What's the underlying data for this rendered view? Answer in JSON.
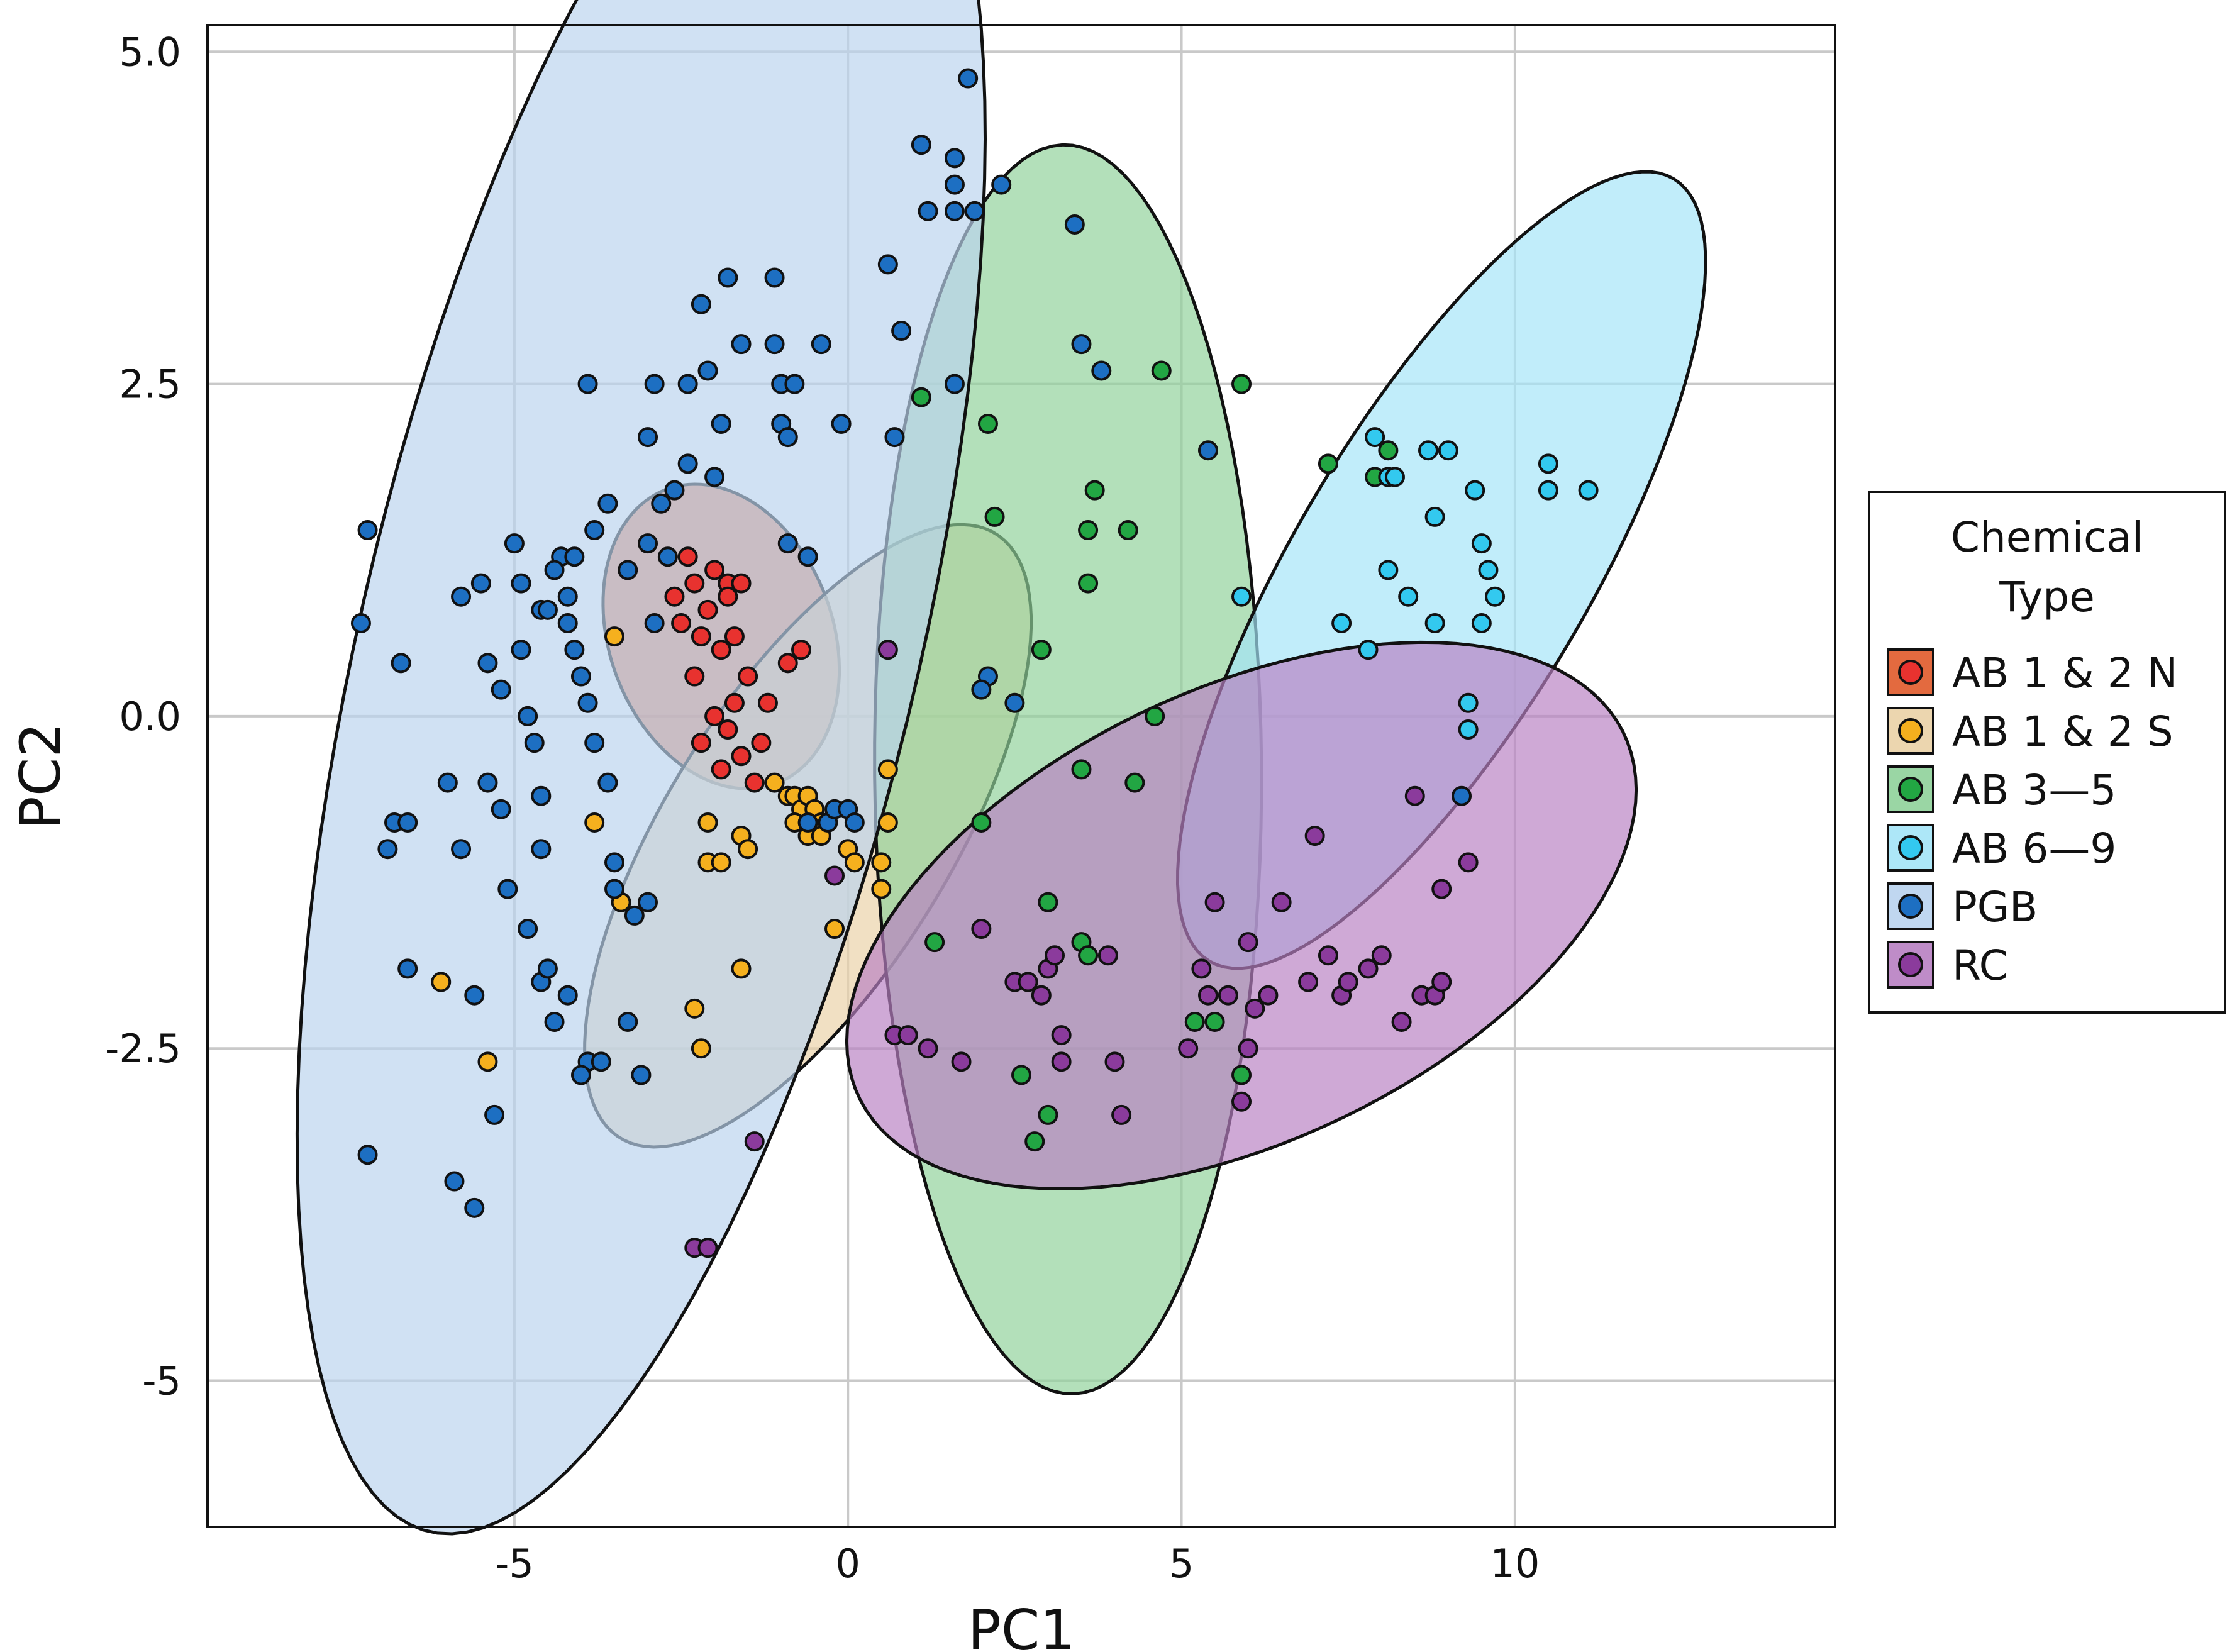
{
  "chart_data": {
    "type": "scatter",
    "xlabel": "PC1",
    "ylabel": "PC2",
    "xlim": [
      -9.6,
      14.8
    ],
    "ylim": [
      -6.1,
      5.2
    ],
    "xticks": [
      -5,
      0,
      5,
      10
    ],
    "xtick_labels": [
      "-5",
      "0",
      "5",
      "10"
    ],
    "yticks": [
      -5,
      -2.5,
      0,
      2.5,
      5
    ],
    "ytick_labels": [
      "-5",
      "-2.5",
      "0.0",
      "2.5",
      "5.0"
    ],
    "grid": true,
    "legend": {
      "title_lines": [
        "Chemical",
        "Type"
      ],
      "position": "right"
    },
    "series": [
      {
        "name": "AB 1 & 2 N",
        "color": "#e8322f",
        "fill": "#e05a2a",
        "ellipse": {
          "cx": -1.9,
          "cy": 0.6,
          "rx": 1.1,
          "ry": 1.8,
          "angle_deg": 77
        },
        "points": [
          [
            -2.6,
            0.9
          ],
          [
            -2.5,
            0.7
          ],
          [
            -2.3,
            1.0
          ],
          [
            -2.1,
            0.8
          ],
          [
            -2.0,
            1.1
          ],
          [
            -1.8,
            1.0
          ],
          [
            -1.7,
            0.6
          ],
          [
            -1.6,
            1.0
          ],
          [
            -2.4,
            1.2
          ],
          [
            -2.2,
            0.6
          ],
          [
            -1.9,
            0.5
          ],
          [
            -1.5,
            0.3
          ],
          [
            -1.7,
            0.1
          ],
          [
            -1.8,
            -0.1
          ],
          [
            -2.0,
            0.0
          ],
          [
            -2.2,
            -0.2
          ],
          [
            -1.6,
            -0.3
          ],
          [
            -1.3,
            -0.2
          ],
          [
            -1.2,
            0.1
          ],
          [
            -0.9,
            0.4
          ],
          [
            -0.7,
            0.5
          ],
          [
            -1.9,
            -0.4
          ],
          [
            -1.4,
            -0.5
          ],
          [
            -2.3,
            0.3
          ],
          [
            -1.8,
            0.9
          ]
        ]
      },
      {
        "name": "AB 1 & 2 S",
        "color": "#f5b01e",
        "fill": "#ead2a6",
        "ellipse": {
          "cx": -0.6,
          "cy": -0.9,
          "rx": 3.8,
          "ry": 1.5,
          "angle_deg": 31
        },
        "points": [
          [
            -3.5,
            0.6
          ],
          [
            -3.8,
            -0.8
          ],
          [
            -3.4,
            -1.4
          ],
          [
            -2.1,
            -0.8
          ],
          [
            -2.1,
            -1.1
          ],
          [
            -1.9,
            -1.1
          ],
          [
            -1.6,
            -0.9
          ],
          [
            -1.5,
            -1.0
          ],
          [
            -1.1,
            -0.5
          ],
          [
            -0.9,
            -0.6
          ],
          [
            -0.8,
            -0.6
          ],
          [
            -0.7,
            -0.7
          ],
          [
            -0.6,
            -0.6
          ],
          [
            -0.5,
            -0.7
          ],
          [
            -0.8,
            -0.8
          ],
          [
            -0.6,
            -0.9
          ],
          [
            -0.4,
            -0.8
          ],
          [
            0.0,
            -1.0
          ],
          [
            0.1,
            -1.1
          ],
          [
            0.6,
            -0.4
          ],
          [
            0.6,
            -0.8
          ],
          [
            0.5,
            -1.1
          ],
          [
            0.5,
            -1.3
          ],
          [
            -0.2,
            -1.6
          ],
          [
            -1.6,
            -1.9
          ],
          [
            -6.1,
            -2.0
          ],
          [
            -2.3,
            -2.2
          ],
          [
            -2.2,
            -2.5
          ],
          [
            -5.4,
            -2.6
          ],
          [
            -0.4,
            -0.9
          ]
        ]
      },
      {
        "name": "AB 3—5",
        "color": "#22a643",
        "fill": "#8fd19a",
        "ellipse": {
          "cx": 3.3,
          "cy": -0.4,
          "rx": 4.7,
          "ry": 2.9,
          "angle_deg": 91
        },
        "points": [
          [
            1.1,
            2.4
          ],
          [
            2.1,
            2.2
          ],
          [
            2.2,
            1.5
          ],
          [
            3.7,
            1.7
          ],
          [
            3.6,
            1.4
          ],
          [
            4.2,
            1.4
          ],
          [
            3.6,
            1.0
          ],
          [
            4.7,
            2.6
          ],
          [
            5.9,
            2.5
          ],
          [
            2.9,
            0.5
          ],
          [
            4.6,
            0.0
          ],
          [
            4.3,
            -0.5
          ],
          [
            3.5,
            -0.4
          ],
          [
            2.0,
            -0.8
          ],
          [
            1.3,
            -1.7
          ],
          [
            3.0,
            -1.4
          ],
          [
            3.5,
            -1.7
          ],
          [
            3.6,
            -1.8
          ],
          [
            2.6,
            -2.7
          ],
          [
            3.0,
            -3.0
          ],
          [
            2.8,
            -3.2
          ],
          [
            5.2,
            -2.3
          ],
          [
            5.5,
            -2.3
          ],
          [
            5.9,
            -2.7
          ],
          [
            7.2,
            1.9
          ],
          [
            8.1,
            2.0
          ],
          [
            7.9,
            1.8
          ]
        ]
      },
      {
        "name": "AB 6—9",
        "color": "#33c9ef",
        "fill": "#a4e4f7",
        "ellipse": {
          "cx": 8.9,
          "cy": 1.1,
          "rx": 4.7,
          "ry": 1.6,
          "angle_deg": 35
        },
        "points": [
          [
            5.9,
            0.9
          ],
          [
            7.4,
            0.7
          ],
          [
            7.8,
            0.5
          ],
          [
            8.1,
            1.1
          ],
          [
            8.4,
            0.9
          ],
          [
            7.9,
            2.1
          ],
          [
            8.1,
            1.8
          ],
          [
            8.2,
            1.8
          ],
          [
            8.7,
            2.0
          ],
          [
            9.0,
            2.0
          ],
          [
            8.8,
            1.5
          ],
          [
            9.4,
            1.7
          ],
          [
            9.5,
            1.3
          ],
          [
            9.6,
            1.1
          ],
          [
            9.7,
            0.9
          ],
          [
            9.5,
            0.7
          ],
          [
            8.8,
            0.7
          ],
          [
            9.3,
            0.1
          ],
          [
            9.3,
            -0.1
          ],
          [
            10.5,
            1.9
          ],
          [
            10.5,
            1.7
          ],
          [
            11.1,
            1.7
          ]
        ]
      },
      {
        "name": "PGB",
        "color": "#1d6fc2",
        "fill": "#b9d3ee",
        "ellipse": {
          "cx": -3.1,
          "cy": 0.6,
          "rx": 7.6,
          "ry": 3.8,
          "angle_deg": 58
        },
        "points": [
          [
            -7.2,
            1.4
          ],
          [
            -7.3,
            0.7
          ],
          [
            -6.8,
            -0.8
          ],
          [
            -6.9,
            -1.0
          ],
          [
            -6.6,
            -0.8
          ],
          [
            -6.6,
            -1.9
          ],
          [
            -6.7,
            0.4
          ],
          [
            -6.0,
            -0.5
          ],
          [
            -5.8,
            0.9
          ],
          [
            -5.8,
            -1.0
          ],
          [
            -5.6,
            -2.1
          ],
          [
            -5.5,
            1.0
          ],
          [
            -5.4,
            0.4
          ],
          [
            -5.2,
            0.2
          ],
          [
            -5.2,
            -0.7
          ],
          [
            -5.4,
            -0.5
          ],
          [
            -5.1,
            -1.3
          ],
          [
            -5.0,
            1.3
          ],
          [
            -4.9,
            1.0
          ],
          [
            -4.9,
            0.5
          ],
          [
            -4.8,
            0.0
          ],
          [
            -4.7,
            -0.2
          ],
          [
            -4.6,
            -0.6
          ],
          [
            -4.6,
            -1.0
          ],
          [
            -4.8,
            -1.6
          ],
          [
            -4.6,
            -2.0
          ],
          [
            -4.5,
            -1.9
          ],
          [
            -4.4,
            -2.3
          ],
          [
            -4.3,
            1.2
          ],
          [
            -4.2,
            0.9
          ],
          [
            -4.2,
            0.7
          ],
          [
            -4.1,
            0.5
          ],
          [
            -4.0,
            0.3
          ],
          [
            -3.9,
            0.1
          ],
          [
            -3.8,
            -0.2
          ],
          [
            -3.6,
            -0.5
          ],
          [
            -3.5,
            -1.1
          ],
          [
            -3.5,
            -1.3
          ],
          [
            -3.2,
            -1.5
          ],
          [
            -3.0,
            -1.4
          ],
          [
            -3.9,
            -2.6
          ],
          [
            -4.0,
            -2.7
          ],
          [
            -3.7,
            -2.6
          ],
          [
            -3.3,
            -2.3
          ],
          [
            -3.1,
            -2.7
          ],
          [
            -3.3,
            1.1
          ],
          [
            -3.0,
            1.3
          ],
          [
            -2.8,
            1.6
          ],
          [
            -2.6,
            1.7
          ],
          [
            -3.6,
            1.6
          ],
          [
            -3.8,
            1.4
          ],
          [
            -4.1,
            1.2
          ],
          [
            -4.4,
            1.1
          ],
          [
            -4.6,
            0.8
          ],
          [
            -3.9,
            2.5
          ],
          [
            -2.9,
            2.5
          ],
          [
            -3.0,
            2.1
          ],
          [
            -2.4,
            2.5
          ],
          [
            -2.1,
            2.6
          ],
          [
            -2.2,
            3.1
          ],
          [
            -1.8,
            3.3
          ],
          [
            -1.9,
            2.2
          ],
          [
            -1.6,
            2.8
          ],
          [
            -1.1,
            3.3
          ],
          [
            -1.1,
            2.8
          ],
          [
            -1.0,
            2.5
          ],
          [
            -1.0,
            2.2
          ],
          [
            -0.9,
            2.1
          ],
          [
            -0.8,
            2.5
          ],
          [
            -0.4,
            2.8
          ],
          [
            -0.1,
            2.2
          ],
          [
            0.6,
            3.4
          ],
          [
            0.8,
            2.9
          ],
          [
            0.7,
            2.1
          ],
          [
            1.1,
            4.3
          ],
          [
            1.6,
            4.0
          ],
          [
            1.6,
            3.8
          ],
          [
            1.2,
            3.8
          ],
          [
            1.8,
            4.8
          ],
          [
            1.9,
            3.8
          ],
          [
            2.3,
            4.0
          ],
          [
            1.6,
            4.2
          ],
          [
            1.6,
            2.5
          ],
          [
            -2.4,
            1.9
          ],
          [
            -2.0,
            1.8
          ],
          [
            -0.6,
            1.2
          ],
          [
            -0.9,
            1.3
          ],
          [
            -0.3,
            -0.8
          ],
          [
            -0.2,
            -0.7
          ],
          [
            0.0,
            -0.7
          ],
          [
            0.1,
            -0.8
          ],
          [
            -0.6,
            -0.8
          ],
          [
            2.1,
            0.3
          ],
          [
            2.0,
            0.2
          ],
          [
            2.5,
            0.1
          ],
          [
            3.4,
            3.7
          ],
          [
            3.5,
            2.8
          ],
          [
            3.8,
            2.6
          ],
          [
            5.4,
            2.0
          ],
          [
            -7.2,
            -3.3
          ],
          [
            -5.9,
            -3.5
          ],
          [
            -5.6,
            -3.7
          ],
          [
            -5.3,
            -3.0
          ],
          [
            -4.2,
            -2.1
          ],
          [
            9.2,
            -0.6
          ],
          [
            -4.5,
            0.8
          ],
          [
            -2.7,
            1.2
          ],
          [
            -2.9,
            0.7
          ]
        ]
      },
      {
        "name": "RC",
        "color": "#8b3b9c",
        "fill": "#b880c2",
        "ellipse": {
          "cx": 5.9,
          "cy": -1.5,
          "rx": 6.0,
          "ry": 1.8,
          "angle_deg": 10
        },
        "points": [
          [
            0.6,
            0.5
          ],
          [
            -0.2,
            -1.2
          ],
          [
            0.7,
            -2.4
          ],
          [
            0.9,
            -2.4
          ],
          [
            1.2,
            -2.5
          ],
          [
            1.7,
            -2.6
          ],
          [
            2.0,
            -1.6
          ],
          [
            2.5,
            -2.0
          ],
          [
            2.7,
            -2.0
          ],
          [
            2.9,
            -2.1
          ],
          [
            3.0,
            -1.9
          ],
          [
            3.1,
            -1.8
          ],
          [
            3.2,
            -2.4
          ],
          [
            3.2,
            -2.6
          ],
          [
            3.9,
            -1.8
          ],
          [
            4.0,
            -2.6
          ],
          [
            4.1,
            -3.0
          ],
          [
            5.1,
            -2.5
          ],
          [
            5.3,
            -1.9
          ],
          [
            5.4,
            -2.1
          ],
          [
            5.5,
            -1.4
          ],
          [
            5.7,
            -2.1
          ],
          [
            5.9,
            -2.9
          ],
          [
            6.0,
            -1.7
          ],
          [
            6.0,
            -2.5
          ],
          [
            6.1,
            -2.2
          ],
          [
            6.3,
            -2.1
          ],
          [
            6.5,
            -1.4
          ],
          [
            6.9,
            -2.0
          ],
          [
            7.2,
            -1.8
          ],
          [
            7.4,
            -2.1
          ],
          [
            7.5,
            -2.0
          ],
          [
            7.8,
            -1.9
          ],
          [
            8.0,
            -1.8
          ],
          [
            8.3,
            -2.3
          ],
          [
            8.5,
            -0.6
          ],
          [
            8.6,
            -2.1
          ],
          [
            8.8,
            -2.1
          ],
          [
            8.9,
            -2.0
          ],
          [
            8.9,
            -1.3
          ],
          [
            9.3,
            -1.1
          ],
          [
            7.0,
            -0.9
          ],
          [
            -1.4,
            -3.2
          ],
          [
            -2.3,
            -4.0
          ],
          [
            -2.1,
            -4.0
          ]
        ]
      }
    ]
  }
}
